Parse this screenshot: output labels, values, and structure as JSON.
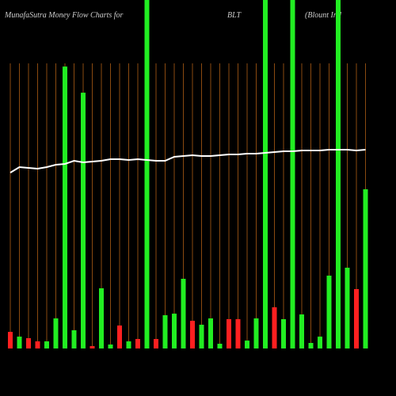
{
  "chart_data": {
    "type": "bar",
    "title": "MunafaSutra  Money Flow  Charts for",
    "symbol": "BLT",
    "company": "(Blount Ind",
    "categories": [
      null,
      null,
      null,
      null,
      null,
      null,
      null,
      null,
      null,
      null,
      null,
      null,
      null,
      null,
      null,
      null,
      null,
      null,
      null,
      null,
      null,
      null,
      null,
      null,
      null,
      null,
      null,
      null,
      null,
      null,
      null,
      null,
      null,
      null,
      null,
      null,
      null,
      null,
      null,
      null
    ],
    "values": [
      21,
      15,
      13,
      9,
      9,
      38,
      356,
      23,
      323,
      3,
      76,
      5,
      29,
      9,
      12,
      460,
      12,
      42,
      44,
      88,
      35,
      30,
      38,
      6,
      37,
      37,
      10,
      38,
      460,
      52,
      37,
      460,
      43,
      7,
      15,
      92,
      460,
      102,
      75,
      201
    ],
    "colors": [
      "#ff2020",
      "#22ee22",
      "#ff2020",
      "#ff2020",
      "#22ee22",
      "#22ee22",
      "#22ee22",
      "#22ee22",
      "#22ee22",
      "#ff2020",
      "#22ee22",
      "#22ee22",
      "#ff2020",
      "#22ee22",
      "#ff2020",
      "#22ee22",
      "#ff2020",
      "#22ee22",
      "#22ee22",
      "#22ee22",
      "#ff2020",
      "#22ee22",
      "#22ee22",
      "#22ee22",
      "#ff2020",
      "#ff2020",
      "#22ee22",
      "#22ee22",
      "#22ee22",
      "#ff2020",
      "#22ee22",
      "#22ee22",
      "#22ee22",
      "#22ee22",
      "#22ee22",
      "#22ee22",
      "#22ee22",
      "#22ee22",
      "#ff2020",
      "#22ee22"
    ],
    "line": {
      "color": "#ffffff",
      "values": [
        222,
        229,
        228,
        227,
        229,
        232,
        233,
        237,
        235,
        236,
        237,
        239,
        239,
        238,
        239,
        238,
        237,
        237,
        242,
        243,
        244,
        243,
        243,
        244,
        245,
        245,
        246,
        246,
        247,
        248,
        249,
        249,
        250,
        250,
        250,
        251,
        251,
        251,
        250,
        251
      ]
    },
    "ylim": [
      0,
      440
    ],
    "grid_color": "#8a4a10",
    "grid": true
  }
}
